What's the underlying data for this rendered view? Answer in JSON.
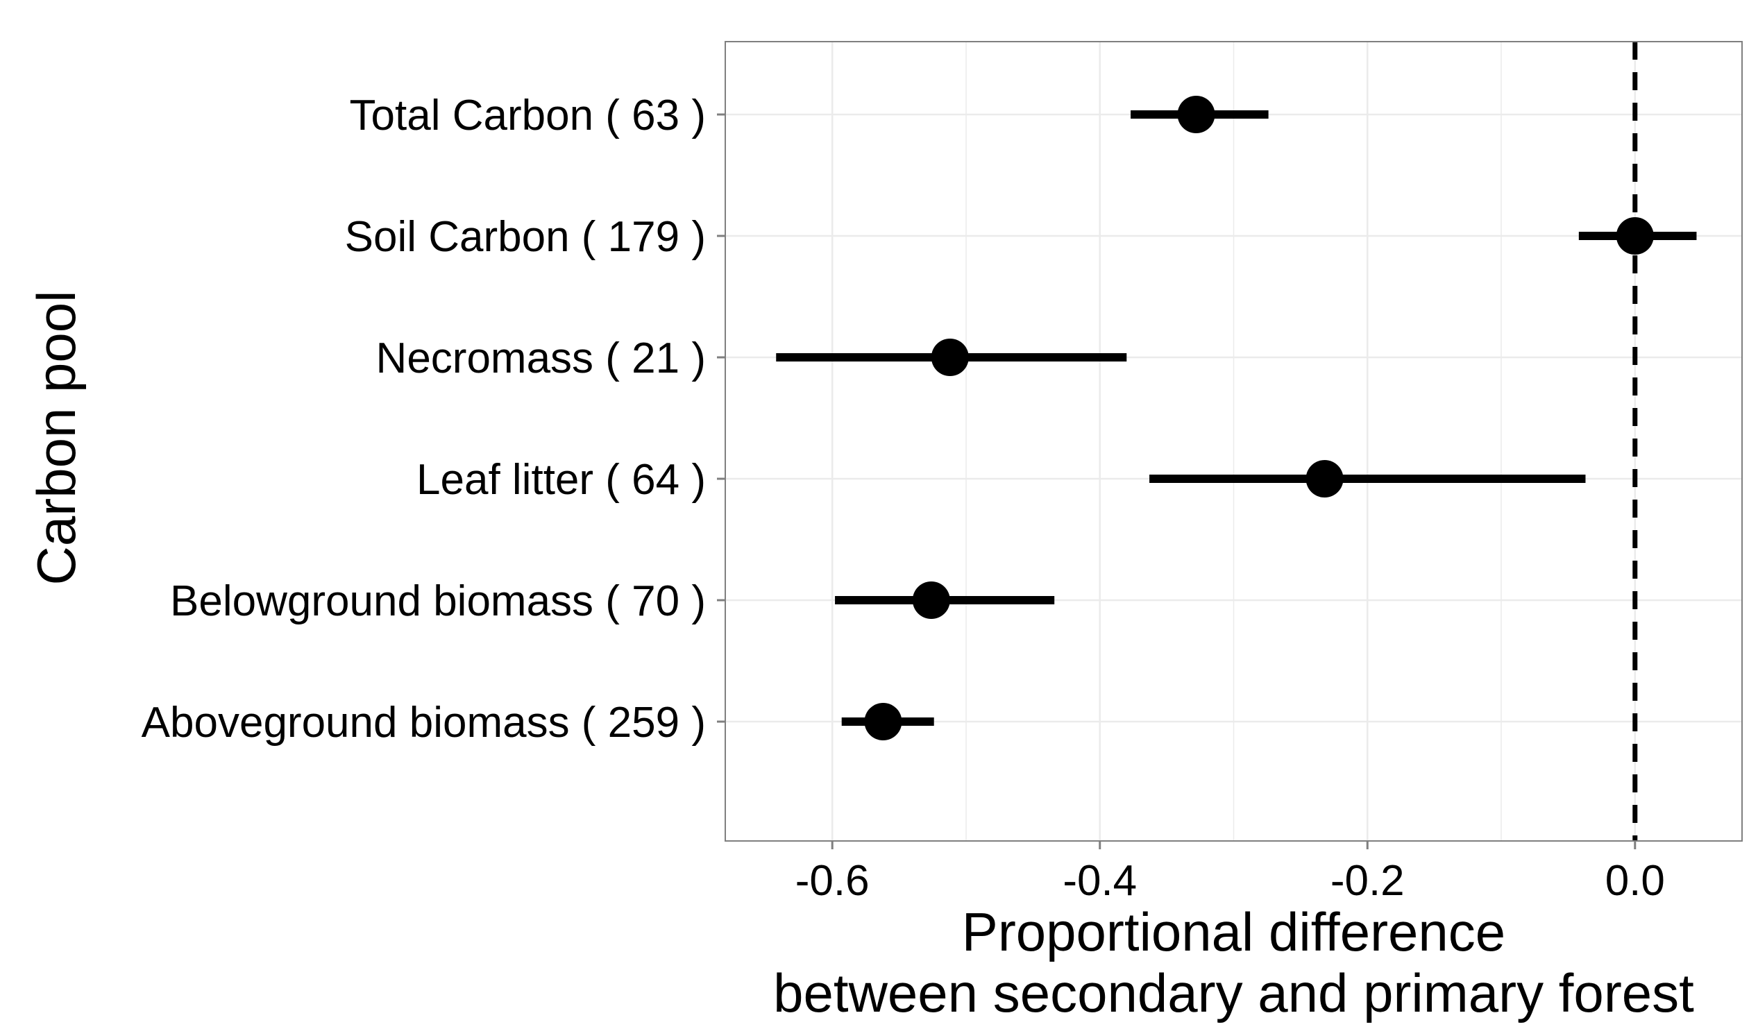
{
  "chart_data": {
    "type": "forest",
    "title": "",
    "xlabel_lines": [
      "Proportional difference",
      "between secondary and primary forest"
    ],
    "ylabel": "Carbon pool",
    "xlim": [
      -0.68,
      0.08
    ],
    "xticks": [
      -0.6,
      -0.4,
      -0.2,
      0.0
    ],
    "xtick_labels": [
      "-0.6",
      "-0.4",
      "-0.2",
      "0.0"
    ],
    "reference_line": {
      "x": 0.0,
      "style": "dashed"
    },
    "grid": true,
    "categories": [
      "Total Carbon ( 63 )",
      "Soil Carbon ( 179 )",
      "Necromass ( 21 )",
      "Leaf litter ( 64 )",
      "Belowground biomass ( 70 )",
      "Aboveground biomass ( 259 )"
    ],
    "estimates": [
      -0.328,
      0.0,
      -0.512,
      -0.232,
      -0.526,
      -0.562
    ],
    "lower": [
      -0.377,
      -0.042,
      -0.642,
      -0.363,
      -0.598,
      -0.593
    ],
    "upper": [
      -0.274,
      0.046,
      -0.38,
      -0.037,
      -0.434,
      -0.524
    ],
    "colors": {
      "mark": "#000000",
      "frame": "#7f7f7f",
      "grid": "#ebebeb"
    }
  }
}
